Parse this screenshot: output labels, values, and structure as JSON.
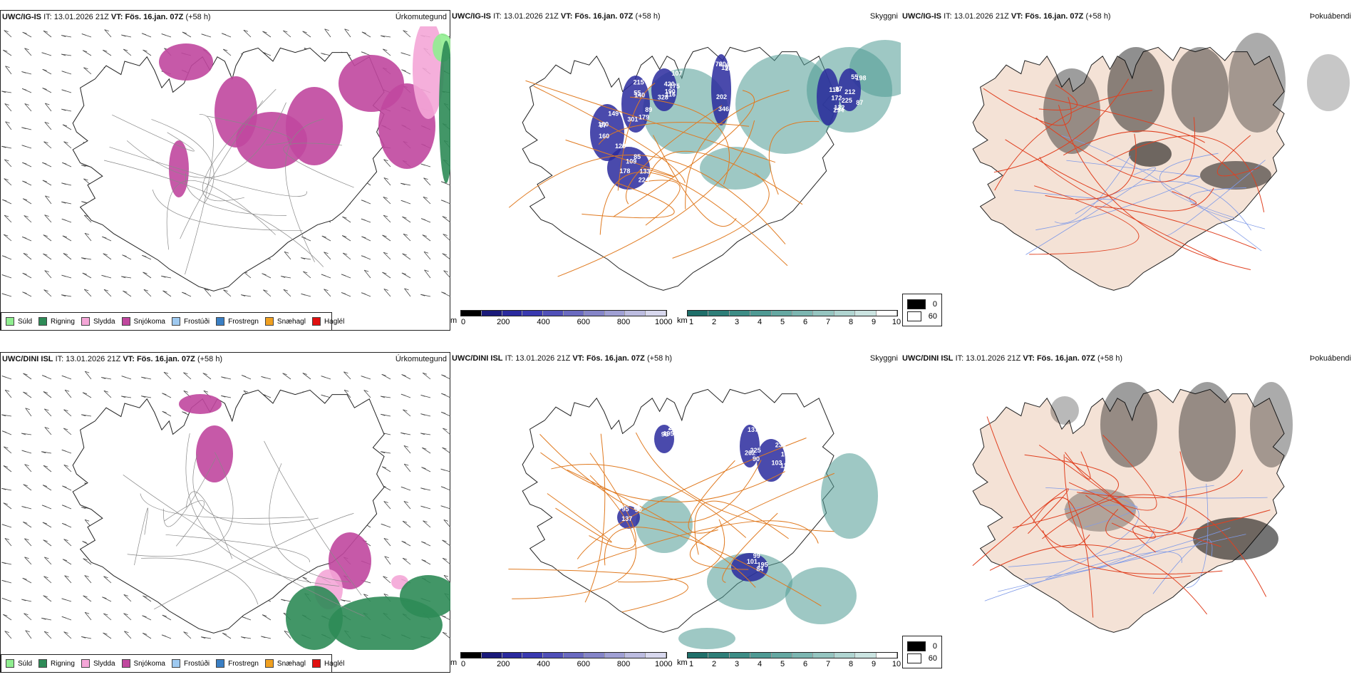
{
  "rows": [
    {
      "panels": [
        {
          "model": "UWC/IG-IS",
          "it_label": "IT:",
          "it_value": "13.01.2026 21Z",
          "vt_label": "VT:",
          "vt_value": "Fös. 16.jan. 07Z",
          "lead": "(+58 h)",
          "title": "Úrkomutegund"
        },
        {
          "model": "UWC/IG-IS",
          "it_label": "IT:",
          "it_value": "13.01.2026 21Z",
          "vt_label": "VT:",
          "vt_value": "Fös. 16.jan. 07Z",
          "lead": "(+58 h)",
          "title": "Skyggni"
        },
        {
          "model": "UWC/IG-IS",
          "it_label": "IT:",
          "it_value": "13.01.2026 21Z",
          "vt_label": "VT:",
          "vt_value": "Fös. 16.jan. 07Z",
          "lead": "(+58 h)",
          "title": "Þokuábendi"
        }
      ]
    },
    {
      "panels": [
        {
          "model": "UWC/DINI ISL",
          "it_label": "IT:",
          "it_value": "13.01.2026 21Z",
          "vt_label": "VT:",
          "vt_value": "Fös. 16.jan. 07Z",
          "lead": "(+58 h)",
          "title": "Úrkomutegund"
        },
        {
          "model": "UWC/DINI ISL",
          "it_label": "IT:",
          "it_value": "13.01.2026 21Z",
          "vt_label": "VT:",
          "vt_value": "Fös. 16.jan. 07Z",
          "lead": "(+58 h)",
          "title": "Skyggni"
        },
        {
          "model": "UWC/DINI ISL",
          "it_label": "IT:",
          "it_value": "13.01.2026 21Z",
          "vt_label": "VT:",
          "vt_value": "Fös. 16.jan. 07Z",
          "lead": "(+58 h)",
          "title": "Þokuábendi"
        }
      ]
    }
  ],
  "precip_legend": [
    {
      "label": "Súld",
      "color": "#90ee90"
    },
    {
      "label": "Rigning",
      "color": "#2e8b57"
    },
    {
      "label": "Slydda",
      "color": "#f4a6d7"
    },
    {
      "label": "Snjókoma",
      "color": "#c0479e"
    },
    {
      "label": "Frostúði",
      "color": "#9ec9f0"
    },
    {
      "label": "Frostregn",
      "color": "#3a7fc4"
    },
    {
      "label": "Snæhagl",
      "color": "#f0a020"
    },
    {
      "label": "Haglél",
      "color": "#e01010"
    }
  ],
  "ceiling_bar": {
    "unit": "m",
    "ticks": [
      "0",
      "200",
      "400",
      "600",
      "800",
      "1000"
    ],
    "colors": [
      "#000000",
      "#1a1a7a",
      "#2a2a9e",
      "#3a3ab0",
      "#5050b8",
      "#6a6ac0",
      "#8585c8",
      "#a0a0d4",
      "#bcbce0",
      "#d8d8ee"
    ]
  },
  "visibility_bar": {
    "unit": "km",
    "ticks": [
      "1",
      "2",
      "3",
      "4",
      "5",
      "6",
      "7",
      "8",
      "9",
      "10"
    ],
    "colors": [
      "#1f6f6a",
      "#2e7e78",
      "#3d8d86",
      "#4f9a94",
      "#65a8a2",
      "#7cb6b1",
      "#95c5c0",
      "#b0d5d1",
      "#cbe4e1",
      "#ffffff"
    ]
  },
  "fog_key": {
    "entries": [
      {
        "label": "0",
        "color": "#000000"
      },
      {
        "label": "60",
        "color": "#ffffff"
      }
    ]
  },
  "colors": {
    "coast": "#222222",
    "roads": "#e07a20",
    "fog_land": "#f4e2d6",
    "fog_roads": "#e04020",
    "fog_rivers": "#7f9ae8",
    "snow": "#c0479e",
    "rain": "#2e8b57",
    "sleet": "#f4a6d7",
    "drizzle": "#90ee90",
    "ceiling_blue": "#2a2a9e",
    "visibility_teal": "#4f9a94"
  },
  "map_labels": {
    "top_ceiling": [
      "140",
      "116",
      "76",
      "109",
      "128",
      "118",
      "55",
      "301",
      "420",
      "204",
      "85",
      "97",
      "87",
      "87",
      "89",
      "175",
      "202",
      "178",
      "160",
      "172",
      "212",
      "55",
      "107",
      "346",
      "133",
      "180",
      "294",
      "198",
      "179",
      "328",
      "287",
      "224",
      "149",
      "132",
      "225",
      "215",
      "190",
      "193"
    ],
    "bottom_ceiling": [
      "195",
      "90",
      "103",
      "84",
      "95",
      "96",
      "225",
      "100",
      "101",
      "137",
      "205",
      "262",
      "233",
      "195",
      "90",
      "250",
      "137",
      "110",
      "99",
      "70"
    ]
  }
}
